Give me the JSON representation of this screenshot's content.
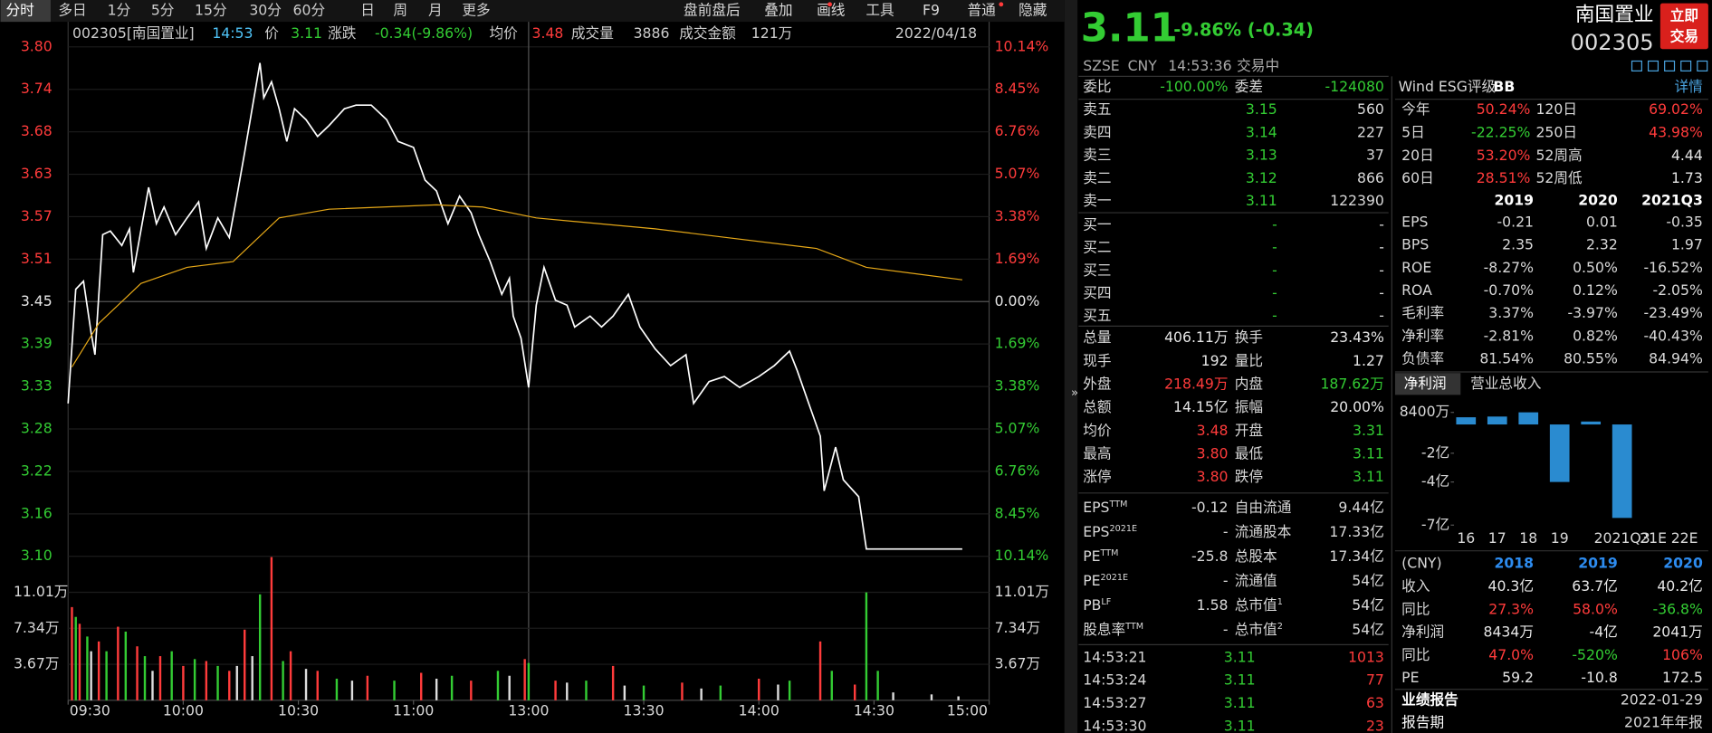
{
  "toolbar": {
    "tabs": [
      "分时",
      "多日",
      "1分",
      "5分",
      "15分",
      "30分",
      "60分",
      "日",
      "周",
      "月",
      "更多"
    ],
    "right": [
      "盘前盘后",
      "叠加",
      "画线",
      "工具",
      "F9",
      "普通",
      "隐藏"
    ]
  },
  "info": {
    "code": "002305[南国置业]",
    "time": "14:53",
    "price_label": "价",
    "price": "3.11",
    "chg_label": "涨跌",
    "chg": "-0.34(-9.86%)",
    "avg_label": "均价",
    "avg": "3.48",
    "vol_label": "成交量",
    "vol": "3886",
    "amt_label": "成交金额",
    "amt": "121万",
    "date": "2022/04/18"
  },
  "chart": {
    "type": "line",
    "xlim": [
      0,
      240
    ],
    "xticks": [
      {
        "value": 0,
        "label": "09:30"
      },
      {
        "value": 30,
        "label": "10:00"
      },
      {
        "value": 60,
        "label": "10:30"
      },
      {
        "value": 90,
        "label": "11:00"
      },
      {
        "value": 120,
        "label": "13:00"
      },
      {
        "value": 150,
        "label": "13:30"
      },
      {
        "value": 180,
        "label": "14:00"
      },
      {
        "value": 210,
        "label": "14:30"
      },
      {
        "value": 240,
        "label": "15:00"
      }
    ],
    "ylim": [
      3.1,
      3.8
    ],
    "yticks": [
      {
        "value": 3.8,
        "label": "3.80"
      },
      {
        "value": 3.7417,
        "label": "3.74"
      },
      {
        "value": 3.6833,
        "label": "3.68"
      },
      {
        "value": 3.625,
        "label": "3.63"
      },
      {
        "value": 3.5667,
        "label": "3.57"
      },
      {
        "value": 3.5083,
        "label": "3.51"
      },
      {
        "value": 3.45,
        "label": "3.45"
      },
      {
        "value": 3.3917,
        "label": "3.39"
      },
      {
        "value": 3.3333,
        "label": "3.33"
      },
      {
        "value": 3.275,
        "label": "3.28"
      },
      {
        "value": 3.2167,
        "label": "3.22"
      },
      {
        "value": 3.1583,
        "label": "3.16"
      },
      {
        "value": 3.1,
        "label": "3.10"
      }
    ],
    "pct_labels": [
      "10.14%",
      "8.45%",
      "6.76%",
      "5.07%",
      "3.38%",
      "1.69%",
      "0.00%",
      "1.69%",
      "3.38%",
      "5.07%",
      "6.76%",
      "8.45%",
      "10.14%"
    ],
    "series": [
      {
        "color": "#ffffff",
        "x": [
          0,
          2,
          4,
          6,
          7,
          9,
          11,
          14,
          16,
          17,
          21,
          23,
          25,
          28,
          31,
          34,
          36,
          39,
          42,
          44,
          46,
          50,
          51,
          53,
          55,
          57,
          59,
          62,
          65,
          68,
          72,
          75,
          79,
          83,
          86,
          90,
          93,
          96,
          99,
          102,
          105,
          107,
          110,
          113,
          115,
          116,
          118,
          120,
          122,
          124,
          127,
          130,
          132,
          136,
          139,
          142,
          146,
          149,
          153,
          157,
          161,
          163,
          167,
          171,
          175,
          180,
          184,
          188,
          190,
          193,
          196,
          197,
          200,
          202,
          206,
          208,
          233
        ],
        "values": [
          3.31,
          3.467,
          3.478,
          3.407,
          3.377,
          3.542,
          3.547,
          3.527,
          3.55,
          3.49,
          3.607,
          3.557,
          3.58,
          3.542,
          3.565,
          3.587,
          3.523,
          3.565,
          3.538,
          3.595,
          3.655,
          3.778,
          3.73,
          3.752,
          3.715,
          3.67,
          3.715,
          3.7,
          3.677,
          3.692,
          3.715,
          3.72,
          3.72,
          3.7,
          3.67,
          3.662,
          3.617,
          3.602,
          3.557,
          3.595,
          3.572,
          3.542,
          3.505,
          3.46,
          3.482,
          3.43,
          3.4,
          3.332,
          3.445,
          3.497,
          3.452,
          3.445,
          3.415,
          3.43,
          3.415,
          3.43,
          3.46,
          3.415,
          3.385,
          3.362,
          3.377,
          3.31,
          3.34,
          3.347,
          3.332,
          3.347,
          3.362,
          3.382,
          3.355,
          3.31,
          3.265,
          3.19,
          3.25,
          3.205,
          3.182,
          3.11,
          3.11
        ]
      },
      {
        "color": "#e6a817",
        "x": [
          1,
          8,
          19,
          31,
          43,
          49,
          55,
          68,
          96,
          108,
          122,
          153,
          195,
          208,
          233
        ],
        "values": [
          3.36,
          3.42,
          3.475,
          3.497,
          3.505,
          3.535,
          3.565,
          3.577,
          3.583,
          3.58,
          3.565,
          3.55,
          3.523,
          3.497,
          3.48
        ]
      }
    ]
  },
  "volume": {
    "ylim": [
      0,
      146800
    ],
    "yticks": [
      {
        "value": 110100,
        "label": "11.01万"
      },
      {
        "value": 73400,
        "label": "7.34万"
      },
      {
        "value": 36700,
        "label": "3.67万"
      }
    ],
    "series": [
      {
        "color": "#ff3b3b",
        "x": [
          1,
          3,
          8,
          13,
          18,
          24,
          30,
          36,
          42,
          46,
          53,
          58,
          65,
          78,
          92,
          105,
          119,
          127,
          142,
          160,
          180,
          196,
          205
        ],
        "values": [
          95000,
          78000,
          60000,
          75000,
          55000,
          45000,
          35000,
          40000,
          30000,
          72000,
          146000,
          50000,
          30000,
          25000,
          28000,
          20000,
          42000,
          20000,
          35000,
          18000,
          22000,
          60000,
          16000
        ]
      },
      {
        "color": "#33cc33",
        "x": [
          2,
          5,
          10,
          15,
          20,
          27,
          33,
          39,
          50,
          56,
          70,
          85,
          100,
          112,
          120,
          135,
          150,
          170,
          188,
          199,
          208,
          211
        ],
        "values": [
          85000,
          65000,
          50000,
          70000,
          45000,
          50000,
          42000,
          35000,
          108000,
          40000,
          22000,
          20000,
          25000,
          30000,
          38000,
          20000,
          15000,
          15000,
          20000,
          30000,
          110000,
          30000
        ]
      },
      {
        "color": "#dddddd",
        "x": [
          6,
          22,
          44,
          48,
          62,
          74,
          96,
          115,
          130,
          145,
          165,
          185,
          215,
          225,
          232
        ],
        "values": [
          50000,
          30000,
          35000,
          45000,
          32000,
          20000,
          22000,
          25000,
          18000,
          15000,
          12000,
          16000,
          8000,
          6000,
          4000
        ]
      }
    ]
  },
  "quote": {
    "price": "3.11",
    "change": "-9.86% (-0.34)",
    "name": "南国置业",
    "code": "002305",
    "button": [
      "立即",
      "交易"
    ],
    "meta": [
      "SZSE",
      "CNY",
      "14:53:36",
      "交易中"
    ],
    "weibi": [
      "委比",
      "-100.00%",
      "委差",
      "-124080"
    ],
    "book": [
      [
        "卖五",
        "3.15",
        "560"
      ],
      [
        "卖四",
        "3.14",
        "227"
      ],
      [
        "卖三",
        "3.13",
        "37"
      ],
      [
        "卖二",
        "3.12",
        "866"
      ],
      [
        "卖一",
        "3.11",
        "122390"
      ],
      [
        "买一",
        "-",
        "-"
      ],
      [
        "买二",
        "-",
        "-"
      ],
      [
        "买三",
        "-",
        "-"
      ],
      [
        "买四",
        "-",
        "-"
      ],
      [
        "买五",
        "-",
        "-"
      ]
    ],
    "stats": [
      [
        "总量",
        "406.11万",
        "换手",
        "23.43%"
      ],
      [
        "现手",
        "192",
        "量比",
        "1.27"
      ],
      [
        "外盘",
        "218.49万",
        "内盘",
        "187.62万"
      ],
      [
        "总额",
        "14.15亿",
        "振幅",
        "20.00%"
      ],
      [
        "均价",
        "3.48",
        "开盘",
        "3.31"
      ],
      [
        "最高",
        "3.80",
        "最低",
        "3.11"
      ],
      [
        "涨停",
        "3.80",
        "跌停",
        "3.11"
      ]
    ],
    "fund": [
      {
        "k": "EPS",
        "sup": "TTM",
        "v": "-0.12",
        "k2": "自由流通",
        "v2": "9.44亿"
      },
      {
        "k": "EPS",
        "sup": "2021E",
        "v": "-",
        "k2": "流通股本",
        "v2": "17.33亿"
      },
      {
        "k": "PE",
        "sup": "TTM",
        "v": "-25.8",
        "k2": "总股本",
        "v2": "17.34亿"
      },
      {
        "k": "PE",
        "sup": "2021E",
        "v": "-",
        "k2": "流通值",
        "v2": "54亿"
      },
      {
        "k": "PB",
        "sup": "LF",
        "v": "1.58",
        "k2": "总市值",
        "sup2": "1",
        "v2": "54亿"
      },
      {
        "k": "股息率",
        "sup": "TTM",
        "v": "-",
        "k2": "总市值",
        "sup2": "2",
        "v2": "54亿"
      }
    ],
    "trades": [
      [
        "14:53:21",
        "3.11",
        "1013"
      ],
      [
        "14:53:24",
        "3.11",
        "77"
      ],
      [
        "14:53:27",
        "3.11",
        "63"
      ],
      [
        "14:53:30",
        "3.11",
        "23"
      ]
    ]
  },
  "f10": {
    "esg": [
      "Wind ESG评级",
      "BB",
      "详情"
    ],
    "returns": [
      [
        "今年",
        "50.24%",
        "120日",
        "69.02%"
      ],
      [
        "5日",
        "-22.25%",
        "250日",
        "43.98%"
      ],
      [
        "20日",
        "53.20%",
        "52周高",
        "4.44"
      ],
      [
        "60日",
        "28.51%",
        "52周低",
        "1.73"
      ]
    ],
    "fin_head": [
      "2019",
      "2020",
      "2021Q3"
    ],
    "fin": [
      [
        "EPS",
        "-0.21",
        "0.01",
        "-0.35"
      ],
      [
        "BPS",
        "2.35",
        "2.32",
        "1.97"
      ],
      [
        "ROE",
        "-8.27%",
        "0.50%",
        "-16.52%"
      ],
      [
        "ROA",
        "-0.70%",
        "0.12%",
        "-2.05%"
      ],
      [
        "毛利率",
        "3.37%",
        "-3.97%",
        "-23.49%"
      ],
      [
        "净利率",
        "-2.81%",
        "0.82%",
        "-40.43%"
      ],
      [
        "负债率",
        "81.54%",
        "80.55%",
        "84.94%"
      ]
    ],
    "tabs": [
      "净利润",
      "营业总收入"
    ],
    "mini": {
      "type": "bar",
      "color": "#2a8bd0",
      "categories": [
        "16",
        "17",
        "18",
        "19",
        null,
        "2021Q3",
        "21E",
        "22E"
      ],
      "values": [
        0.5,
        0.55,
        0.8434,
        -4,
        0.2041,
        -6.5,
        null,
        null
      ],
      "ylim": [
        -7.5,
        1.3
      ],
      "yticks": [
        {
          "value": 0.84,
          "label": "8400万"
        },
        {
          "value": -2,
          "label": "-2亿"
        },
        {
          "value": -4,
          "label": "-4亿"
        },
        {
          "value": -7,
          "label": "-7亿"
        }
      ]
    },
    "annual": {
      "head": [
        "(CNY)",
        "2018",
        "2019",
        "2020"
      ],
      "rows": [
        [
          "收入",
          "40.3亿",
          "63.7亿",
          "40.2亿"
        ],
        [
          "同比",
          "27.3%",
          "58.0%",
          "-36.8%"
        ],
        [
          "净利润",
          "8434万",
          "-4亿",
          "2041万"
        ],
        [
          "同比",
          "47.0%",
          "-520%",
          "106%"
        ],
        [
          "PE",
          "59.2",
          "-10.8",
          "172.5"
        ]
      ]
    },
    "report": [
      [
        "业绩报告",
        "2022-01-29"
      ],
      [
        "报告期",
        "2021年年报"
      ]
    ]
  }
}
